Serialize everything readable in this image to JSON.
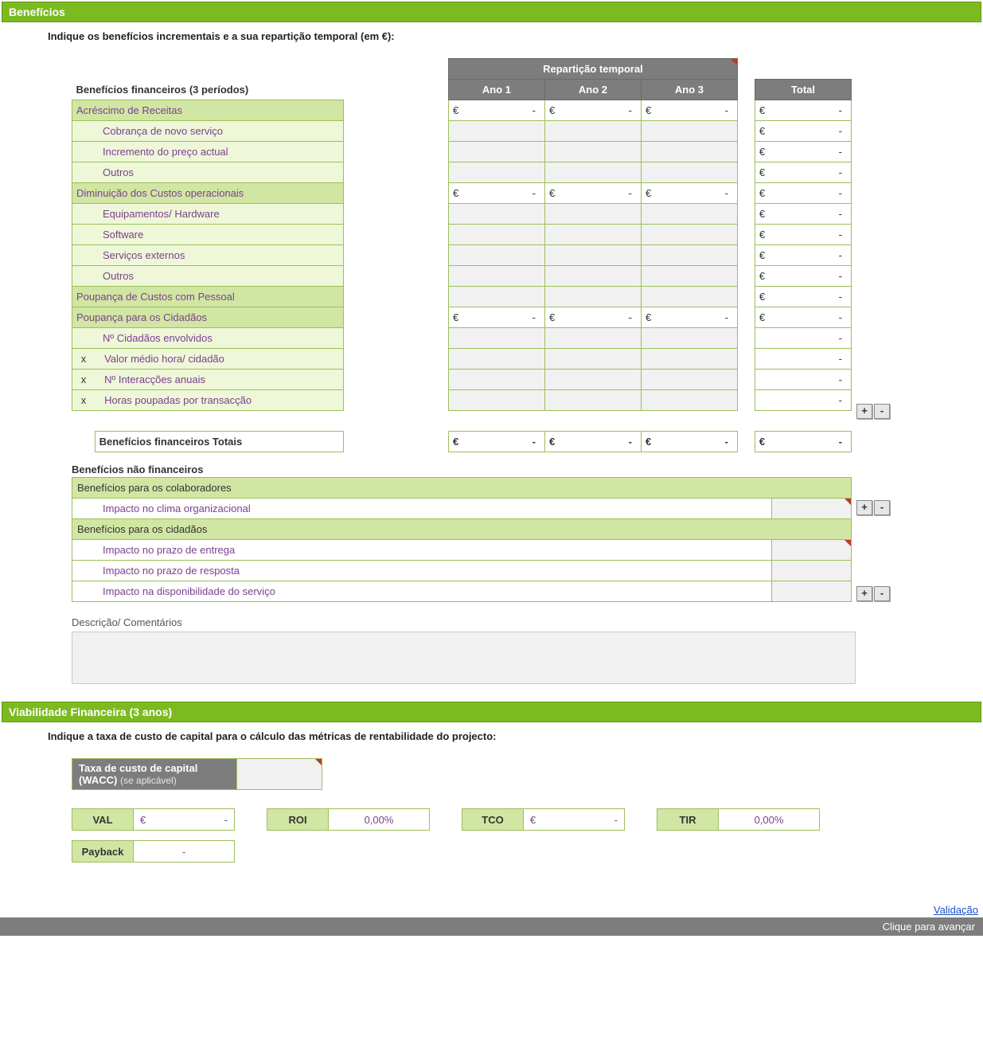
{
  "colors": {
    "header_green": "#7cbb1f",
    "cat_green": "#d1e6a3",
    "sub_green": "#eef7d8",
    "grey_header": "#7d7d7d",
    "input_grey": "#f1f1f1",
    "link_text": "#7b3f8f",
    "border_green": "#9cbf5a",
    "red_corner": "#c0392b"
  },
  "sections": {
    "beneficios": {
      "title": "Benefícios",
      "instruction": "Indique os benefícios incrementais e a sua repartição temporal (em €):",
      "table_header": {
        "left_title": "Benefícios financeiros (3 períodos)",
        "group": "Repartição temporal",
        "cols": [
          "Ano 1",
          "Ano 2",
          "Ano 3"
        ],
        "total": "Total"
      },
      "rows": [
        {
          "kind": "cat",
          "label": "Acréscimo de Receitas",
          "euro_years": true,
          "euro_total": true
        },
        {
          "kind": "sub",
          "label": "Cobrança de novo serviço",
          "euro_total": true
        },
        {
          "kind": "sub",
          "label": "Incremento do preço actual",
          "euro_total": true
        },
        {
          "kind": "sub",
          "label": "Outros",
          "euro_total": true
        },
        {
          "kind": "cat",
          "label": "Diminuição dos Custos operacionais",
          "euro_years": true,
          "euro_total": true
        },
        {
          "kind": "sub",
          "label": "Equipamentos/ Hardware",
          "euro_total": true
        },
        {
          "kind": "sub",
          "label": "Software",
          "euro_total": true
        },
        {
          "kind": "sub",
          "label": "Serviços externos",
          "euro_total": true
        },
        {
          "kind": "sub",
          "label": "Outros",
          "euro_total": true
        },
        {
          "kind": "cat",
          "label": "Poupança de Custos com Pessoal",
          "euro_total": true
        },
        {
          "kind": "cat",
          "label": "Poupança para os Cidadãos",
          "euro_years": true,
          "euro_total": true
        },
        {
          "kind": "sub",
          "label": "Nº Cidadãos envolvidos",
          "dash_total": true
        },
        {
          "kind": "subx",
          "x": "x",
          "label": "Valor médio hora/ cidadão",
          "dash_total": true
        },
        {
          "kind": "subx",
          "x": "x",
          "label": "Nº Interacções anuais",
          "dash_total": true
        },
        {
          "kind": "subx",
          "x": "x",
          "label": "Horas poupadas por transacção",
          "dash_total": true,
          "buttons": true
        }
      ],
      "totals_label": "Benefícios financeiros Totais",
      "nonfin_title": "Benefícios não financeiros",
      "nonfin": [
        {
          "kind": "cat",
          "label": "Benefícios para os colaboradores"
        },
        {
          "kind": "sub",
          "label": "Impacto no clima organizacional",
          "buttons": true,
          "redcorner": true
        },
        {
          "kind": "cat",
          "label": "Benefícios para os cidadãos"
        },
        {
          "kind": "sub",
          "label": "Impacto no prazo de entrega",
          "redcorner": true
        },
        {
          "kind": "sub",
          "label": "Impacto no prazo de resposta"
        },
        {
          "kind": "sub",
          "label": "Impacto na disponibilidade do serviço",
          "buttons": true
        }
      ],
      "desc_label": "Descrição/ Comentários",
      "buttons": {
        "plus": "+",
        "minus": "-"
      }
    },
    "viabilidade": {
      "title": "Viabilidade Financeira (3 anos)",
      "instruction": "Indique a taxa de custo de capital para o cálculo das métricas de rentabilidade do projecto:",
      "wacc": {
        "label_main": "Taxa de custo de capital (WACC)",
        "label_hint": "(se aplicável)",
        "value": ""
      },
      "metrics": [
        {
          "name": "VAL",
          "value_type": "euro",
          "value": "-"
        },
        {
          "name": "ROI",
          "value_type": "pct",
          "value": "0,00%"
        },
        {
          "name": "TCO",
          "value_type": "euro",
          "value": "-"
        },
        {
          "name": "TIR",
          "value_type": "pct",
          "value": "0,00%"
        }
      ],
      "metrics_row2": [
        {
          "name": "Payback",
          "value_type": "dash",
          "value": "-"
        }
      ]
    }
  },
  "symbols": {
    "euro": "€",
    "dash": "-"
  },
  "footer": {
    "link": "Validação",
    "bar": "Clique para avançar"
  }
}
